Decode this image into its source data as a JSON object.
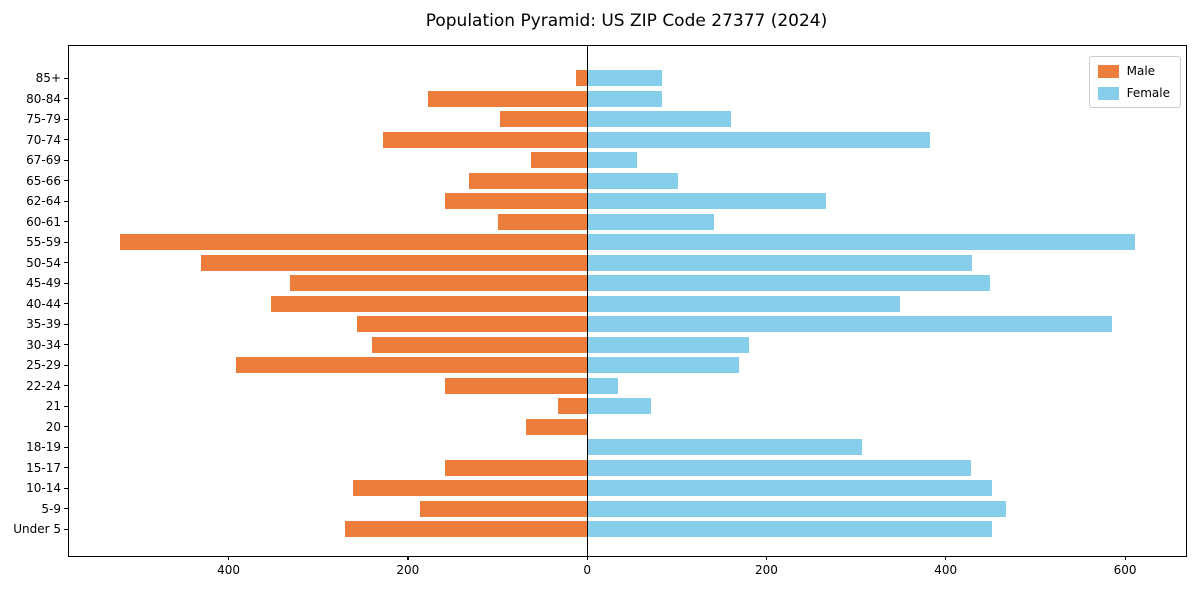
{
  "title": "Population Pyramid: US ZIP Code 27377 (2024)",
  "colors": {
    "male": "#ED7D3A",
    "female": "#87CEEB",
    "axis": "#000000",
    "legend_border": "#cccccc"
  },
  "legend": {
    "entries": [
      {
        "label": "Male",
        "color_key": "male"
      },
      {
        "label": "Female",
        "color_key": "female"
      }
    ]
  },
  "chart_data": {
    "type": "bar",
    "orientation": "horizontal-pyramid",
    "title": "Population Pyramid: US ZIP Code 27377 (2024)",
    "xlabel": "",
    "ylabel": "",
    "grid": false,
    "legend_position": "upper right",
    "categories": [
      "85+",
      "80-84",
      "75-79",
      "70-74",
      "67-69",
      "65-66",
      "62-64",
      "60-61",
      "55-59",
      "50-54",
      "45-49",
      "40-44",
      "35-39",
      "30-34",
      "25-29",
      "22-24",
      "21",
      "20",
      "18-19",
      "15-17",
      "10-14",
      "5-9",
      "Under 5"
    ],
    "series": [
      {
        "name": "Male",
        "side": "left",
        "values": [
          13,
          178,
          97,
          228,
          63,
          132,
          159,
          100,
          521,
          431,
          332,
          353,
          257,
          240,
          392,
          159,
          32,
          68,
          0,
          159,
          261,
          186,
          270
        ]
      },
      {
        "name": "Female",
        "side": "right",
        "values": [
          83,
          83,
          160,
          382,
          56,
          101,
          266,
          141,
          611,
          429,
          449,
          349,
          586,
          181,
          169,
          34,
          71,
          0,
          307,
          428,
          452,
          467,
          452
        ]
      }
    ],
    "x_ticks": [
      -400,
      -200,
      0,
      200,
      400,
      600
    ],
    "x_tick_labels": [
      "400",
      "200",
      "0",
      "200",
      "400",
      "600"
    ],
    "xlim": [
      -578,
      668
    ]
  }
}
